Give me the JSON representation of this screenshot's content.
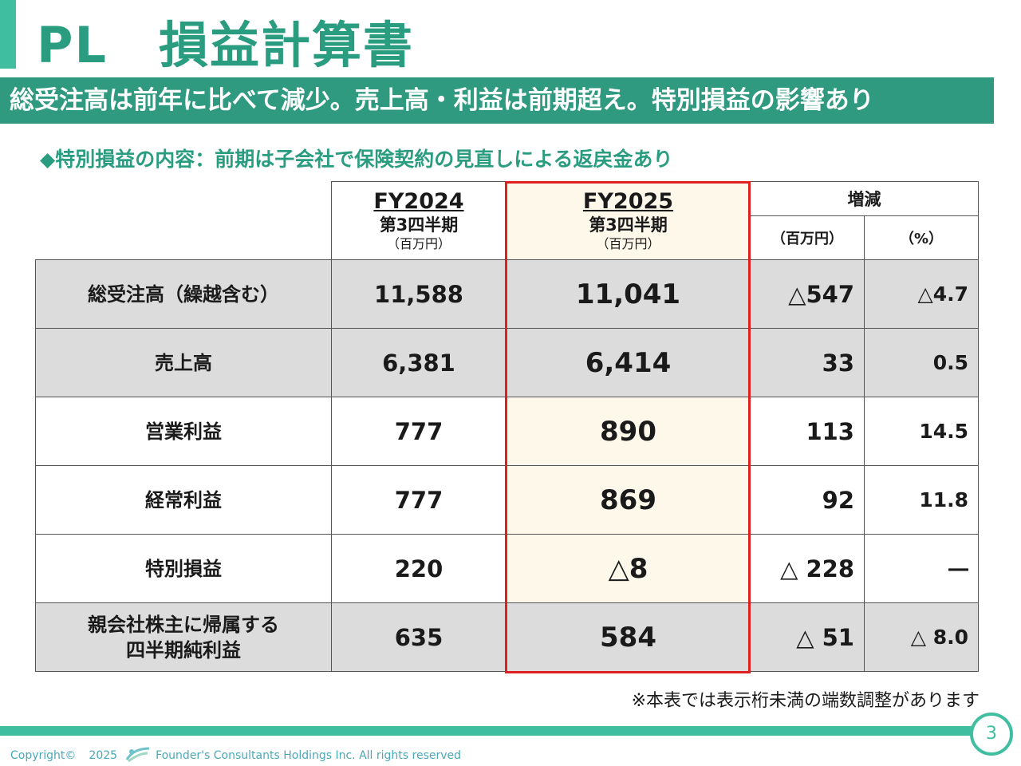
{
  "title": "PL　損益計算書",
  "banner": "総受注高は前年に比べて減少。売上高・利益は前期超え。特別損益の影響あり",
  "subhead": "◆特別損益の内容：前期は子会社で保険契約の見直しによる返戻金あり",
  "table": {
    "fy2024": {
      "year": "FY2024",
      "period": "第3四半期",
      "unit": "（百万円）"
    },
    "fy2025": {
      "year": "FY2025",
      "period": "第3四半期",
      "unit": "（百万円）"
    },
    "diff": {
      "title": "増減",
      "unit_amount": "（百万円）",
      "unit_pct": "（%）"
    },
    "rows": [
      {
        "label": "総受注高（繰越含む）",
        "fy2024": "11,588",
        "fy2025": "11,041",
        "diff": "△547",
        "pct": "△4.7"
      },
      {
        "label": "売上高",
        "fy2024": "6,381",
        "fy2025": "6,414",
        "diff": "33",
        "pct": "0.5"
      },
      {
        "label": "営業利益",
        "fy2024": "777",
        "fy2025": "890",
        "diff": "113",
        "pct": "14.5"
      },
      {
        "label": "経常利益",
        "fy2024": "777",
        "fy2025": "869",
        "diff": "92",
        "pct": "11.8"
      },
      {
        "label": "特別損益",
        "fy2024": "220",
        "fy2025": "△8",
        "diff": "△ 228",
        "pct": "―"
      },
      {
        "label": "親会社株主に帰属する\n四半期純利益",
        "fy2024": "635",
        "fy2025": "584",
        "diff": "△ 51",
        "pct": "△ 8.0"
      }
    ]
  },
  "footnote": "※本表では表示桁未満の端数調整があります",
  "footer": {
    "copyright": "Copyright©",
    "year": "2025",
    "company": "Founder's Consultants Holdings Inc.  All rights reserved",
    "page": "3"
  },
  "colors": {
    "accent": "#2f9a7f",
    "highlight_border": "#e02020",
    "highlight_fill": "#fdf8ea",
    "row_gray": "#dcdcdc"
  },
  "icons": [
    "company-logo-icon"
  ]
}
